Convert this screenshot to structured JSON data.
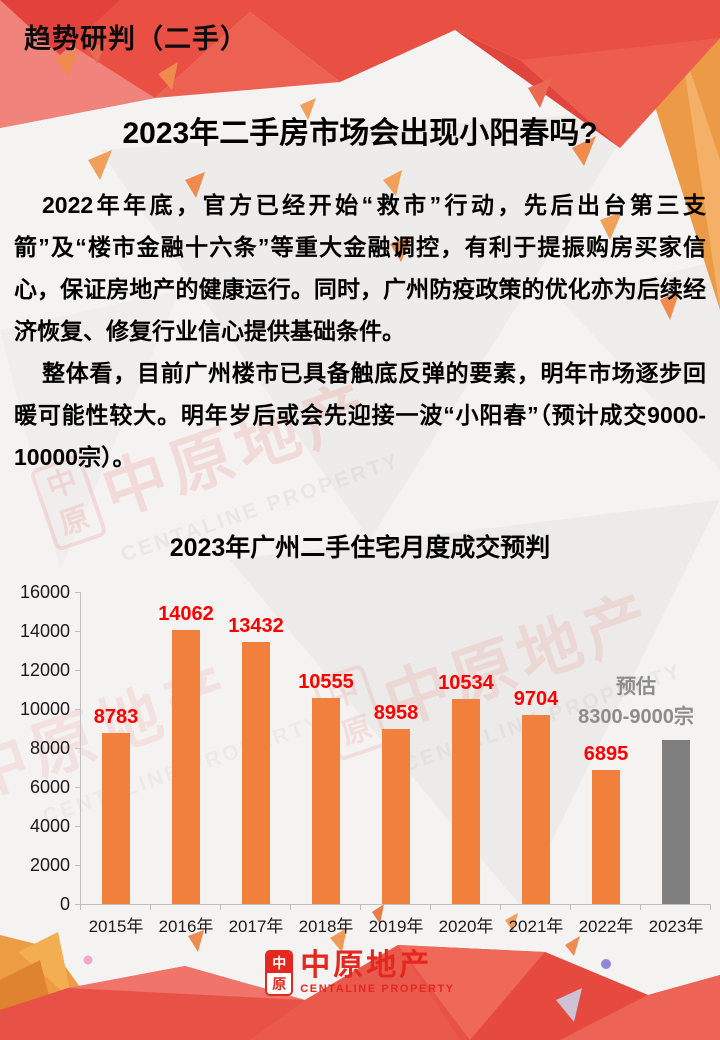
{
  "page": {
    "header": "趋势研判（二手）",
    "title": "2023年二手房市场会出现小阳春吗?",
    "paragraphs": [
      "2022年年底，官方已经开始“救市”行动，先后出台第三支箭”及“楼市金融十六条”等重大金融调控，有利于提振购房买家信心，保证房地产的健康运行。同时，广州防疫政策的优化亦为后续经济恢复、修复行业信心提供基础条件。",
      "整体看，目前广州楼市已具备触底反弹的要素，明年市场逐步回暖可能性较大。明年岁后或会先迎接一波“小阳春”（预计成交9000-10000宗）。"
    ]
  },
  "chart_data": {
    "type": "bar",
    "title": "2023年广州二手住宅月度成交预判",
    "categories": [
      "2015年",
      "2016年",
      "2017年",
      "2018年",
      "2019年",
      "2020年",
      "2021年",
      "2022年",
      "2023年"
    ],
    "values": [
      8783,
      14062,
      13432,
      10555,
      8958,
      10534,
      9704,
      6895,
      8400
    ],
    "labels": [
      "8783",
      "14062",
      "13432",
      "10555",
      "8958",
      "10534",
      "9704",
      "6895",
      ""
    ],
    "estimate_index": 8,
    "estimate_label_lines": [
      "预估",
      "8300-9000宗"
    ],
    "estimate_value_range": [
      8300,
      9000
    ],
    "ylim": [
      0,
      16000
    ],
    "ytick_step": 2000,
    "grid": false,
    "legend": false,
    "colors": {
      "bar": "#f0803c",
      "estimate_bar": "#7f7f7f",
      "value_label": "#fe0000",
      "estimate_label": "#8c8c8c",
      "axis": "#bfbfbf"
    }
  },
  "footer": {
    "seal_top": "中",
    "seal_bottom": "原",
    "logo_text": "中原地产",
    "logo_subtext": "CENTALINE PROPERTY",
    "brand_color": "#e5281f"
  },
  "watermark": {
    "seal_top": "中",
    "seal_bottom": "原",
    "text": "中原地产",
    "subtext": "CENTALINE PROPERTY"
  }
}
